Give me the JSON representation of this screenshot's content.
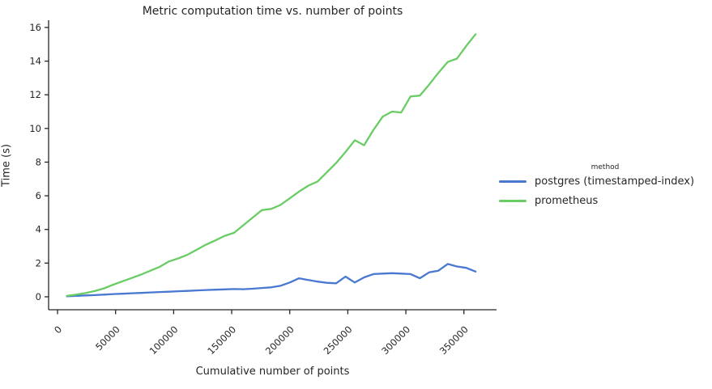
{
  "chart_data": {
    "type": "line",
    "title": "Metric computation time vs. number of points",
    "xlabel": "Cumulative number of points",
    "ylabel": "Time (s)",
    "legend": {
      "title": "method",
      "position": "right outside plot"
    },
    "grid": false,
    "x_ticks": [
      0,
      50000,
      100000,
      150000,
      200000,
      250000,
      300000,
      350000
    ],
    "y_ticks": [
      0,
      2,
      4,
      6,
      8,
      10,
      12,
      14,
      16
    ],
    "xlim": [
      -7700,
      378100
    ],
    "ylim": [
      -0.77,
      16.43
    ],
    "axis_color": "#262626",
    "x": [
      8000,
      16000,
      24000,
      32000,
      40000,
      48000,
      56000,
      64000,
      72000,
      80000,
      88000,
      96000,
      104000,
      112000,
      120000,
      128000,
      136000,
      144000,
      152000,
      160000,
      168000,
      176000,
      184000,
      192000,
      200000,
      208000,
      216000,
      224000,
      232000,
      240000,
      248000,
      256000,
      264000,
      272000,
      280000,
      288000,
      296000,
      304000,
      312000,
      320000,
      328000,
      336000,
      344000,
      352000,
      360000
    ],
    "series": [
      {
        "name": "postgres (timestamped-index)",
        "color": "#4878d0",
        "values": [
          0.03,
          0.05,
          0.08,
          0.1,
          0.13,
          0.16,
          0.18,
          0.21,
          0.23,
          0.26,
          0.28,
          0.3,
          0.33,
          0.35,
          0.38,
          0.4,
          0.42,
          0.44,
          0.46,
          0.45,
          0.48,
          0.52,
          0.56,
          0.65,
          0.85,
          1.1,
          1.0,
          0.9,
          0.83,
          0.8,
          1.2,
          0.85,
          1.15,
          1.35,
          1.38,
          1.4,
          1.38,
          1.35,
          1.1,
          1.45,
          1.55,
          1.95,
          1.8,
          1.72,
          1.5
        ]
      },
      {
        "name": "prometheus",
        "color": "#6acc64",
        "values": [
          0.05,
          0.13,
          0.22,
          0.34,
          0.5,
          0.72,
          0.92,
          1.12,
          1.32,
          1.55,
          1.78,
          2.1,
          2.28,
          2.5,
          2.8,
          3.1,
          3.35,
          3.62,
          3.8,
          4.25,
          4.7,
          5.15,
          5.22,
          5.45,
          5.85,
          6.25,
          6.6,
          6.85,
          7.4,
          7.95,
          8.6,
          9.3,
          9.0,
          9.9,
          10.7,
          11.0,
          10.95,
          11.9,
          11.95,
          12.6,
          13.3,
          13.95,
          14.15,
          14.9,
          15.6
        ]
      }
    ]
  }
}
